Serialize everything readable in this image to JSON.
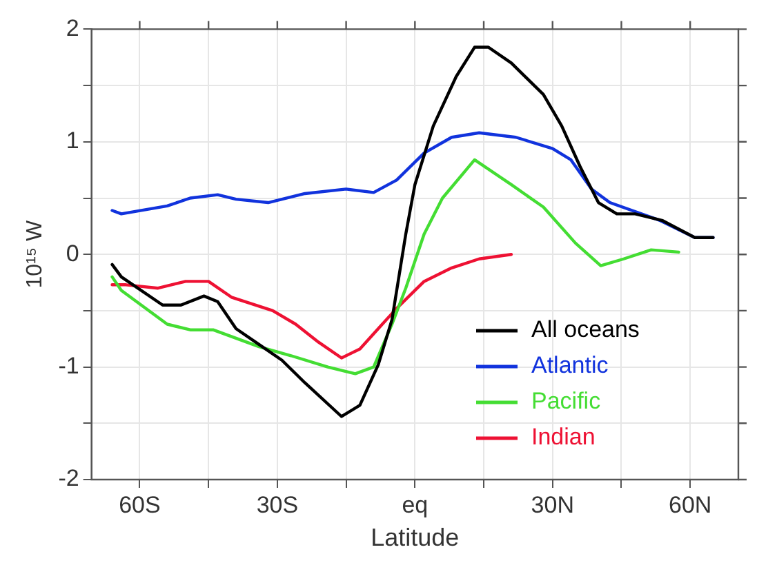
{
  "chart_data": {
    "type": "line",
    "xlabel": "Latitude",
    "ylabel": "10¹⁵ W",
    "xlim": [
      -70.5,
      70.5
    ],
    "ylim": [
      -2,
      2
    ],
    "xticks": [
      {
        "value": -60,
        "label": "60S"
      },
      {
        "value": -45,
        "label": null
      },
      {
        "value": -30,
        "label": "30S"
      },
      {
        "value": -15,
        "label": null
      },
      {
        "value": 0,
        "label": "eq"
      },
      {
        "value": 15,
        "label": null
      },
      {
        "value": 30,
        "label": "30N"
      },
      {
        "value": 45,
        "label": null
      },
      {
        "value": 60,
        "label": "60N"
      }
    ],
    "yticks": [
      -2,
      {
        "value": -1.5,
        "label": null
      },
      -1,
      {
        "value": -0.5,
        "label": null
      },
      0,
      {
        "value": 0.5,
        "label": null
      },
      1,
      {
        "value": 1.5,
        "label": null
      },
      2
    ],
    "grid": true,
    "legend": "bottom right",
    "marker": "none",
    "line_style": "solid",
    "series": [
      {
        "name": "All oceans",
        "color": "#000000",
        "x": [
          -66,
          -64,
          -55,
          -51,
          -46,
          -43,
          -39,
          -34,
          -29,
          -24,
          -16,
          -12,
          -8,
          -5,
          -2,
          0,
          4,
          9,
          13,
          16,
          21,
          28,
          32,
          36,
          40,
          44,
          48,
          54,
          61,
          65
        ],
        "values": [
          -0.09,
          -0.2,
          -0.45,
          -0.45,
          -0.37,
          -0.42,
          -0.66,
          -0.8,
          -0.94,
          -1.14,
          -1.44,
          -1.34,
          -0.98,
          -0.58,
          0.18,
          0.62,
          1.14,
          1.58,
          1.84,
          1.84,
          1.7,
          1.42,
          1.14,
          0.78,
          0.46,
          0.36,
          0.36,
          0.3,
          0.15,
          0.15
        ]
      },
      {
        "name": "Atlantic",
        "color": "#1133dd",
        "x": [
          -66,
          -64,
          -54,
          -49,
          -43,
          -39,
          -32,
          -24,
          -15,
          -9,
          -4,
          2,
          8,
          14,
          22,
          30,
          34,
          38.5,
          42.5,
          53.5,
          61,
          65
        ],
        "values": [
          0.39,
          0.36,
          0.43,
          0.5,
          0.53,
          0.49,
          0.46,
          0.54,
          0.58,
          0.55,
          0.66,
          0.9,
          1.04,
          1.08,
          1.04,
          0.94,
          0.84,
          0.58,
          0.46,
          0.3,
          0.15,
          0.15
        ]
      },
      {
        "name": "Pacific",
        "color": "#44dd33",
        "x": [
          -66,
          -64,
          -54,
          -49,
          -44,
          -34,
          -27,
          -19,
          -13,
          -9,
          -5,
          -2,
          2,
          6,
          13,
          21,
          28,
          35,
          40.5,
          45.5,
          51.5,
          57.5
        ],
        "values": [
          -0.2,
          -0.32,
          -0.62,
          -0.67,
          -0.67,
          -0.82,
          -0.9,
          -1,
          -1.06,
          -1,
          -0.62,
          -0.3,
          0.18,
          0.5,
          0.84,
          0.62,
          0.42,
          0.1,
          -0.1,
          -0.04,
          0.04,
          0.02
        ]
      },
      {
        "name": "Indian",
        "color": "#ee1133",
        "x": [
          -66,
          -63,
          -56,
          -50,
          -45,
          -40,
          -31,
          -26,
          -21,
          -16,
          -12,
          -8,
          -4,
          2,
          8,
          14,
          21
        ],
        "values": [
          -0.27,
          -0.27,
          -0.3,
          -0.24,
          -0.24,
          -0.38,
          -0.5,
          -0.62,
          -0.78,
          -0.92,
          -0.84,
          -0.66,
          -0.48,
          -0.24,
          -0.12,
          -0.04,
          0
        ]
      }
    ]
  }
}
